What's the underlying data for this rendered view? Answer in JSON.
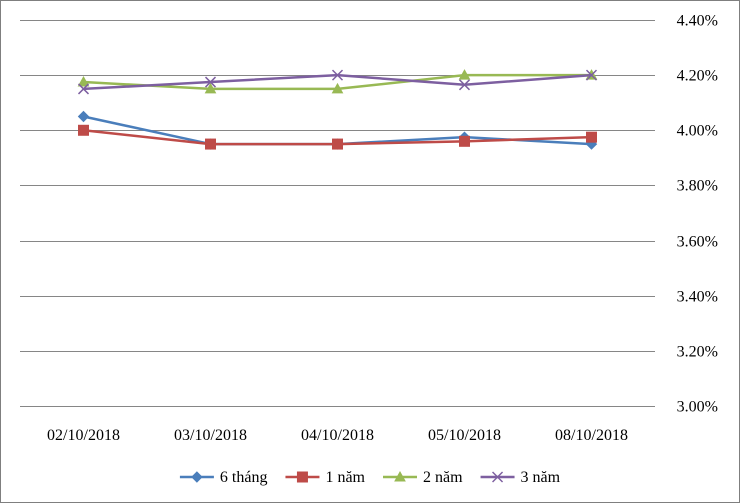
{
  "chart_data": {
    "type": "line",
    "title": "",
    "xlabel": "",
    "ylabel": "",
    "categories": [
      "02/10/2018",
      "03/10/2018",
      "04/10/2018",
      "05/10/2018",
      "08/10/2018"
    ],
    "ylim": [
      3.0,
      4.4
    ],
    "yticks": [
      3.0,
      3.2,
      3.4,
      3.6,
      3.8,
      4.0,
      4.2,
      4.4
    ],
    "ytick_labels": [
      "3.00%",
      "3.20%",
      "3.40%",
      "3.60%",
      "3.80%",
      "4.00%",
      "4.20%",
      "4.40%"
    ],
    "y_axis_position": "right",
    "grid": true,
    "legend_position": "bottom",
    "series": [
      {
        "name": "6 tháng",
        "color": "#4a7ebb",
        "marker": "diamond",
        "values": [
          4.05,
          3.95,
          3.95,
          3.975,
          3.95
        ]
      },
      {
        "name": "1 năm",
        "color": "#be4b48",
        "marker": "square",
        "values": [
          4.0,
          3.95,
          3.95,
          3.96,
          3.975
        ]
      },
      {
        "name": "2 năm",
        "color": "#98b954",
        "marker": "triangle",
        "values": [
          4.175,
          4.15,
          4.15,
          4.2,
          4.2
        ]
      },
      {
        "name": "3 năm",
        "color": "#7d5fa0",
        "marker": "x",
        "values": [
          4.15,
          4.175,
          4.2,
          4.165,
          4.2
        ]
      }
    ]
  }
}
